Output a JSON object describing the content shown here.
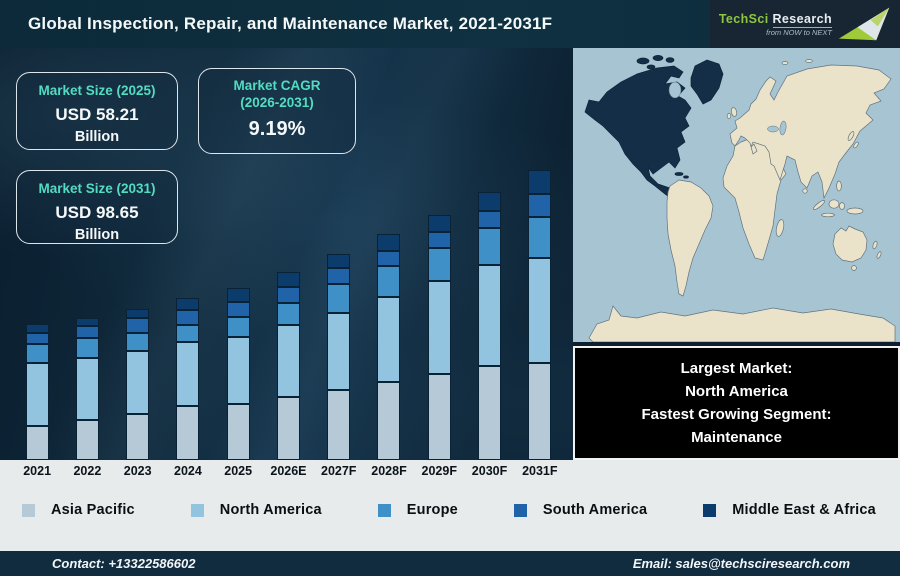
{
  "header": {
    "title": "Global Inspection, Repair, and Maintenance Market, 2021-2031F",
    "logo": {
      "brand_primary": "TechSci",
      "brand_secondary": "Research",
      "tagline": "from NOW to NEXT",
      "brand_green": "#8dc63f"
    }
  },
  "badges": [
    {
      "label": "Market Size (2025)",
      "value": "USD 58.21",
      "unit": "Billion"
    },
    {
      "label": "Market CAGR",
      "label2": "(2026-2031)",
      "value": "9.19%"
    },
    {
      "label": "Market Size (2031)",
      "value": "USD 98.65",
      "unit": "Billion"
    }
  ],
  "highlight_box": {
    "lines": [
      "Largest Market:",
      "North America",
      "Fastest Growing Segment:",
      "Maintenance"
    ]
  },
  "map": {
    "highlighted_region": "North America",
    "ocean_color": "#a7c4d3",
    "land_color": "#ebe3c9",
    "highlight_color": "#152e47"
  },
  "chart_data": {
    "type": "bar",
    "stacked": true,
    "title": "Global Inspection, Repair, and Maintenance Market, 2021-2031F",
    "unit": "USD Billion (values estimated from bar heights; 2025 and 2031 totals per labels)",
    "categories": [
      "2021",
      "2022",
      "2023",
      "2024",
      "2025",
      "2026E",
      "2027F",
      "2028F",
      "2029F",
      "2030F",
      "2031F"
    ],
    "series": [
      {
        "name": "Asia Pacific",
        "color": "#b5cad6",
        "values": [
          11.5,
          13.6,
          15.6,
          18.3,
          19.0,
          21.2,
          23.8,
          26.2,
          29.1,
          31.9,
          32.9
        ]
      },
      {
        "name": "North America",
        "color": "#92c4e0",
        "values": [
          21.3,
          21.0,
          21.3,
          21.6,
          22.7,
          24.3,
          25.9,
          28.6,
          31.5,
          34.1,
          35.6
        ]
      },
      {
        "name": "Europe",
        "color": "#4090c8",
        "values": [
          6.4,
          6.8,
          6.1,
          5.7,
          6.8,
          7.5,
          9.8,
          10.5,
          11.1,
          12.4,
          14.0
        ]
      },
      {
        "name": "South America",
        "color": "#2163a8",
        "values": [
          3.7,
          4.1,
          5.1,
          5.1,
          5.1,
          5.5,
          5.3,
          4.9,
          5.4,
          5.6,
          7.9
        ]
      },
      {
        "name": "Middle East & Africa",
        "color": "#0c3c6c",
        "values": [
          3.1,
          2.6,
          3.0,
          4.1,
          4.6,
          5.1,
          4.6,
          5.6,
          5.7,
          6.4,
          8.2
        ]
      }
    ],
    "totals": [
      46.0,
      48.1,
      51.1,
      54.8,
      58.21,
      63.56,
      69.4,
      75.78,
      82.74,
      90.35,
      98.65
    ],
    "xlabel": "",
    "ylabel": "",
    "axis_values_shown": false,
    "grid": false,
    "legend_position": "bottom"
  },
  "legend": {
    "items": [
      {
        "label": "Asia Pacific",
        "color": "#b5cad6"
      },
      {
        "label": "North America",
        "color": "#92c4e0"
      },
      {
        "label": "Europe",
        "color": "#4090c8"
      },
      {
        "label": "South America",
        "color": "#2163a8"
      },
      {
        "label": "Middle East & Africa",
        "color": "#0c3c6c"
      }
    ]
  },
  "footer": {
    "contact": "Contact: +13322586602",
    "email": "Email: sales@techsciresearch.com"
  }
}
